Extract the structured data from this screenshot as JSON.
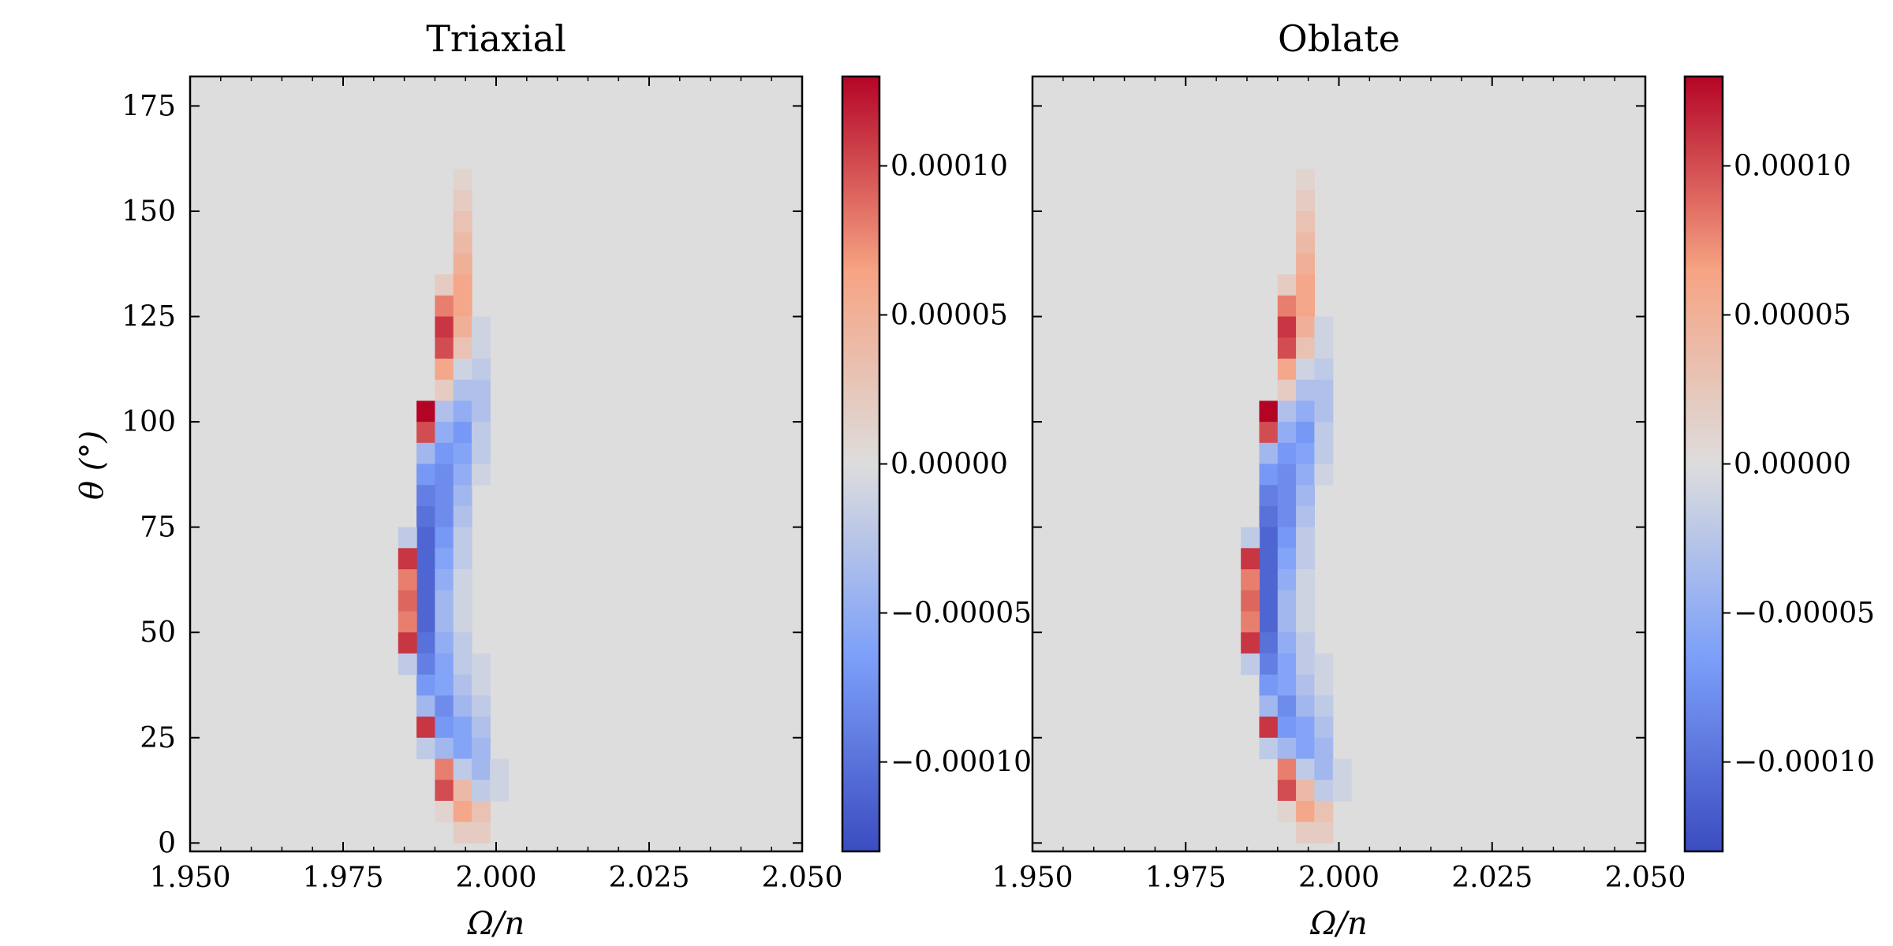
{
  "chart_data": [
    {
      "type": "heatmap",
      "title": "Triaxial",
      "xlabel": "Ω/n",
      "ylabel": "θ (°)",
      "xlim": [
        1.95,
        2.05
      ],
      "ylim": [
        0,
        180
      ],
      "xticks": [
        "1.950",
        "1.975",
        "2.000",
        "2.025",
        "2.050"
      ],
      "yticks": [
        "0",
        "25",
        "50",
        "75",
        "100",
        "125",
        "150",
        "175"
      ],
      "colormap": "coolwarm",
      "colorbar": {
        "vmin": -0.00013,
        "vmax": 0.00013,
        "ticks": [
          -0.0001,
          -5e-05,
          0,
          5e-05,
          0.0001
        ],
        "tick_labels": [
          "−0.00010",
          "−0.00005",
          "0.00000",
          "0.00005",
          "0.00010"
        ]
      },
      "cells": [
        {
          "x": 1.9885,
          "y": 102.5,
          "v": 0.00013
        },
        {
          "x": 1.9885,
          "y": 97.5,
          "v": 0.0001
        },
        {
          "x": 1.9885,
          "y": 92.5,
          "v": -4e-05
        },
        {
          "x": 1.9885,
          "y": 87.5,
          "v": -7e-05
        },
        {
          "x": 1.9885,
          "y": 82.5,
          "v": -9e-05
        },
        {
          "x": 1.9885,
          "y": 77.5,
          "v": -0.0001
        },
        {
          "x": 1.9885,
          "y": 72.5,
          "v": -0.00011
        },
        {
          "x": 1.9885,
          "y": 67.5,
          "v": -0.00011
        },
        {
          "x": 1.9885,
          "y": 62.5,
          "v": -0.00011
        },
        {
          "x": 1.9885,
          "y": 57.5,
          "v": -0.00011
        },
        {
          "x": 1.9885,
          "y": 52.5,
          "v": -0.00011
        },
        {
          "x": 1.9885,
          "y": 47.5,
          "v": -0.0001
        },
        {
          "x": 1.9885,
          "y": 42.5,
          "v": -9e-05
        },
        {
          "x": 1.9885,
          "y": 37.5,
          "v": -7e-05
        },
        {
          "x": 1.9885,
          "y": 32.5,
          "v": -4e-05
        },
        {
          "x": 1.9885,
          "y": 27.5,
          "v": 0.00011
        },
        {
          "x": 1.9885,
          "y": 22.5,
          "v": -2e-05
        },
        {
          "x": 1.9855,
          "y": 72.5,
          "v": -2e-05
        },
        {
          "x": 1.9855,
          "y": 67.5,
          "v": 0.00011
        },
        {
          "x": 1.9855,
          "y": 62.5,
          "v": 8e-05
        },
        {
          "x": 1.9855,
          "y": 57.5,
          "v": 9e-05
        },
        {
          "x": 1.9855,
          "y": 52.5,
          "v": 8e-05
        },
        {
          "x": 1.9855,
          "y": 47.5,
          "v": 0.00011
        },
        {
          "x": 1.9855,
          "y": 42.5,
          "v": -2e-05
        },
        {
          "x": 1.9915,
          "y": 132.5,
          "v": 2e-05
        },
        {
          "x": 1.9915,
          "y": 127.5,
          "v": 8e-05
        },
        {
          "x": 1.9915,
          "y": 122.5,
          "v": 0.00011
        },
        {
          "x": 1.9915,
          "y": 117.5,
          "v": 0.0001
        },
        {
          "x": 1.9915,
          "y": 112.5,
          "v": 6e-05
        },
        {
          "x": 1.9915,
          "y": 107.5,
          "v": 2e-05
        },
        {
          "x": 1.9915,
          "y": 102.5,
          "v": -3e-05
        },
        {
          "x": 1.9915,
          "y": 97.5,
          "v": -5e-05
        },
        {
          "x": 1.9915,
          "y": 92.5,
          "v": -7e-05
        },
        {
          "x": 1.9915,
          "y": 87.5,
          "v": -8e-05
        },
        {
          "x": 1.9915,
          "y": 82.5,
          "v": -8e-05
        },
        {
          "x": 1.9915,
          "y": 77.5,
          "v": -8e-05
        },
        {
          "x": 1.9915,
          "y": 72.5,
          "v": -7e-05
        },
        {
          "x": 1.9915,
          "y": 67.5,
          "v": -6e-05
        },
        {
          "x": 1.9915,
          "y": 62.5,
          "v": -5e-05
        },
        {
          "x": 1.9915,
          "y": 57.5,
          "v": -4e-05
        },
        {
          "x": 1.9915,
          "y": 52.5,
          "v": -4e-05
        },
        {
          "x": 1.9915,
          "y": 47.5,
          "v": -5e-05
        },
        {
          "x": 1.9915,
          "y": 42.5,
          "v": -6e-05
        },
        {
          "x": 1.9915,
          "y": 37.5,
          "v": -6e-05
        },
        {
          "x": 1.9915,
          "y": 32.5,
          "v": -8e-05
        },
        {
          "x": 1.9915,
          "y": 27.5,
          "v": -7e-05
        },
        {
          "x": 1.9915,
          "y": 22.5,
          "v": -4e-05
        },
        {
          "x": 1.9915,
          "y": 17.5,
          "v": 8e-05
        },
        {
          "x": 1.9915,
          "y": 12.5,
          "v": 0.0001
        },
        {
          "x": 1.9915,
          "y": 7.5,
          "v": 1e-05
        },
        {
          "x": 1.9945,
          "y": 157.5,
          "v": 1e-05
        },
        {
          "x": 1.9945,
          "y": 152.5,
          "v": 2e-05
        },
        {
          "x": 1.9945,
          "y": 147.5,
          "v": 3e-05
        },
        {
          "x": 1.9945,
          "y": 142.5,
          "v": 4e-05
        },
        {
          "x": 1.9945,
          "y": 137.5,
          "v": 5e-05
        },
        {
          "x": 1.9945,
          "y": 132.5,
          "v": 6e-05
        },
        {
          "x": 1.9945,
          "y": 127.5,
          "v": 6e-05
        },
        {
          "x": 1.9945,
          "y": 122.5,
          "v": 5e-05
        },
        {
          "x": 1.9945,
          "y": 117.5,
          "v": 3e-05
        },
        {
          "x": 1.9945,
          "y": 112.5,
          "v": -1e-05
        },
        {
          "x": 1.9945,
          "y": 107.5,
          "v": -3e-05
        },
        {
          "x": 1.9945,
          "y": 102.5,
          "v": -5e-05
        },
        {
          "x": 1.9945,
          "y": 97.5,
          "v": -7e-05
        },
        {
          "x": 1.9945,
          "y": 92.5,
          "v": -6e-05
        },
        {
          "x": 1.9945,
          "y": 87.5,
          "v": -5e-05
        },
        {
          "x": 1.9945,
          "y": 82.5,
          "v": -4e-05
        },
        {
          "x": 1.9945,
          "y": 77.5,
          "v": -3e-05
        },
        {
          "x": 1.9945,
          "y": 72.5,
          "v": -2e-05
        },
        {
          "x": 1.9945,
          "y": 67.5,
          "v": -2e-05
        },
        {
          "x": 1.9945,
          "y": 62.5,
          "v": -1e-05
        },
        {
          "x": 1.9945,
          "y": 57.5,
          "v": -1e-05
        },
        {
          "x": 1.9945,
          "y": 52.5,
          "v": -1e-05
        },
        {
          "x": 1.9945,
          "y": 47.5,
          "v": -2e-05
        },
        {
          "x": 1.9945,
          "y": 42.5,
          "v": -2e-05
        },
        {
          "x": 1.9945,
          "y": 37.5,
          "v": -3e-05
        },
        {
          "x": 1.9945,
          "y": 32.5,
          "v": -4e-05
        },
        {
          "x": 1.9945,
          "y": 27.5,
          "v": -6e-05
        },
        {
          "x": 1.9945,
          "y": 22.5,
          "v": -6e-05
        },
        {
          "x": 1.9945,
          "y": 17.5,
          "v": -2e-05
        },
        {
          "x": 1.9945,
          "y": 12.5,
          "v": 4e-05
        },
        {
          "x": 1.9945,
          "y": 7.5,
          "v": 6e-05
        },
        {
          "x": 1.9945,
          "y": 2.5,
          "v": 2e-05
        },
        {
          "x": 1.9975,
          "y": 122.5,
          "v": -1e-05
        },
        {
          "x": 1.9975,
          "y": 117.5,
          "v": -1e-05
        },
        {
          "x": 1.9975,
          "y": 112.5,
          "v": -2e-05
        },
        {
          "x": 1.9975,
          "y": 107.5,
          "v": -3e-05
        },
        {
          "x": 1.9975,
          "y": 102.5,
          "v": -3e-05
        },
        {
          "x": 1.9975,
          "y": 97.5,
          "v": -2e-05
        },
        {
          "x": 1.9975,
          "y": 92.5,
          "v": -2e-05
        },
        {
          "x": 1.9975,
          "y": 87.5,
          "v": -1e-05
        },
        {
          "x": 1.9975,
          "y": 42.5,
          "v": -1e-05
        },
        {
          "x": 1.9975,
          "y": 37.5,
          "v": -1e-05
        },
        {
          "x": 1.9975,
          "y": 32.5,
          "v": -2e-05
        },
        {
          "x": 1.9975,
          "y": 27.5,
          "v": -3e-05
        },
        {
          "x": 1.9975,
          "y": 22.5,
          "v": -4e-05
        },
        {
          "x": 1.9975,
          "y": 17.5,
          "v": -4e-05
        },
        {
          "x": 1.9975,
          "y": 12.5,
          "v": -2e-05
        },
        {
          "x": 1.9975,
          "y": 7.5,
          "v": 3e-05
        },
        {
          "x": 1.9975,
          "y": 2.5,
          "v": 2e-05
        },
        {
          "x": 2.0005,
          "y": 17.5,
          "v": -1e-05
        },
        {
          "x": 2.0005,
          "y": 12.5,
          "v": -1e-05
        }
      ]
    },
    {
      "type": "heatmap",
      "title": "Oblate",
      "xlabel": "Ω/n",
      "ylabel": "",
      "xlim": [
        1.95,
        2.05
      ],
      "ylim": [
        0,
        180
      ],
      "xticks": [
        "1.950",
        "1.975",
        "2.000",
        "2.025",
        "2.050"
      ],
      "yticks": [],
      "colormap": "coolwarm",
      "colorbar": {
        "vmin": -0.00013,
        "vmax": 0.00013,
        "ticks": [
          -0.0001,
          -5e-05,
          0,
          5e-05,
          0.0001
        ],
        "tick_labels": [
          "−0.00010",
          "−0.00005",
          "0.00000",
          "0.00005",
          "0.00010"
        ]
      },
      "cells": [
        {
          "x": 1.9885,
          "y": 102.5,
          "v": 0.00013
        },
        {
          "x": 1.9885,
          "y": 97.5,
          "v": 0.0001
        },
        {
          "x": 1.9885,
          "y": 92.5,
          "v": -4e-05
        },
        {
          "x": 1.9885,
          "y": 87.5,
          "v": -7e-05
        },
        {
          "x": 1.9885,
          "y": 82.5,
          "v": -9e-05
        },
        {
          "x": 1.9885,
          "y": 77.5,
          "v": -0.0001
        },
        {
          "x": 1.9885,
          "y": 72.5,
          "v": -0.00011
        },
        {
          "x": 1.9885,
          "y": 67.5,
          "v": -0.00011
        },
        {
          "x": 1.9885,
          "y": 62.5,
          "v": -0.00011
        },
        {
          "x": 1.9885,
          "y": 57.5,
          "v": -0.00011
        },
        {
          "x": 1.9885,
          "y": 52.5,
          "v": -0.00011
        },
        {
          "x": 1.9885,
          "y": 47.5,
          "v": -0.0001
        },
        {
          "x": 1.9885,
          "y": 42.5,
          "v": -9e-05
        },
        {
          "x": 1.9885,
          "y": 37.5,
          "v": -7e-05
        },
        {
          "x": 1.9885,
          "y": 32.5,
          "v": -4e-05
        },
        {
          "x": 1.9885,
          "y": 27.5,
          "v": 0.00011
        },
        {
          "x": 1.9885,
          "y": 22.5,
          "v": -2e-05
        },
        {
          "x": 1.9855,
          "y": 72.5,
          "v": -2e-05
        },
        {
          "x": 1.9855,
          "y": 67.5,
          "v": 0.00011
        },
        {
          "x": 1.9855,
          "y": 62.5,
          "v": 8e-05
        },
        {
          "x": 1.9855,
          "y": 57.5,
          "v": 9e-05
        },
        {
          "x": 1.9855,
          "y": 52.5,
          "v": 8e-05
        },
        {
          "x": 1.9855,
          "y": 47.5,
          "v": 0.00011
        },
        {
          "x": 1.9855,
          "y": 42.5,
          "v": -2e-05
        },
        {
          "x": 1.9915,
          "y": 132.5,
          "v": 2e-05
        },
        {
          "x": 1.9915,
          "y": 127.5,
          "v": 8e-05
        },
        {
          "x": 1.9915,
          "y": 122.5,
          "v": 0.00011
        },
        {
          "x": 1.9915,
          "y": 117.5,
          "v": 0.0001
        },
        {
          "x": 1.9915,
          "y": 112.5,
          "v": 6e-05
        },
        {
          "x": 1.9915,
          "y": 107.5,
          "v": 2e-05
        },
        {
          "x": 1.9915,
          "y": 102.5,
          "v": -3e-05
        },
        {
          "x": 1.9915,
          "y": 97.5,
          "v": -5e-05
        },
        {
          "x": 1.9915,
          "y": 92.5,
          "v": -7e-05
        },
        {
          "x": 1.9915,
          "y": 87.5,
          "v": -8e-05
        },
        {
          "x": 1.9915,
          "y": 82.5,
          "v": -8e-05
        },
        {
          "x": 1.9915,
          "y": 77.5,
          "v": -8e-05
        },
        {
          "x": 1.9915,
          "y": 72.5,
          "v": -7e-05
        },
        {
          "x": 1.9915,
          "y": 67.5,
          "v": -6e-05
        },
        {
          "x": 1.9915,
          "y": 62.5,
          "v": -5e-05
        },
        {
          "x": 1.9915,
          "y": 57.5,
          "v": -4e-05
        },
        {
          "x": 1.9915,
          "y": 52.5,
          "v": -4e-05
        },
        {
          "x": 1.9915,
          "y": 47.5,
          "v": -5e-05
        },
        {
          "x": 1.9915,
          "y": 42.5,
          "v": -6e-05
        },
        {
          "x": 1.9915,
          "y": 37.5,
          "v": -6e-05
        },
        {
          "x": 1.9915,
          "y": 32.5,
          "v": -8e-05
        },
        {
          "x": 1.9915,
          "y": 27.5,
          "v": -7e-05
        },
        {
          "x": 1.9915,
          "y": 22.5,
          "v": -4e-05
        },
        {
          "x": 1.9915,
          "y": 17.5,
          "v": 8e-05
        },
        {
          "x": 1.9915,
          "y": 12.5,
          "v": 0.0001
        },
        {
          "x": 1.9915,
          "y": 7.5,
          "v": 1e-05
        },
        {
          "x": 1.9945,
          "y": 157.5,
          "v": 1e-05
        },
        {
          "x": 1.9945,
          "y": 152.5,
          "v": 2e-05
        },
        {
          "x": 1.9945,
          "y": 147.5,
          "v": 3e-05
        },
        {
          "x": 1.9945,
          "y": 142.5,
          "v": 4e-05
        },
        {
          "x": 1.9945,
          "y": 137.5,
          "v": 5e-05
        },
        {
          "x": 1.9945,
          "y": 132.5,
          "v": 6e-05
        },
        {
          "x": 1.9945,
          "y": 127.5,
          "v": 6e-05
        },
        {
          "x": 1.9945,
          "y": 122.5,
          "v": 5e-05
        },
        {
          "x": 1.9945,
          "y": 117.5,
          "v": 3e-05
        },
        {
          "x": 1.9945,
          "y": 112.5,
          "v": -1e-05
        },
        {
          "x": 1.9945,
          "y": 107.5,
          "v": -3e-05
        },
        {
          "x": 1.9945,
          "y": 102.5,
          "v": -5e-05
        },
        {
          "x": 1.9945,
          "y": 97.5,
          "v": -7e-05
        },
        {
          "x": 1.9945,
          "y": 92.5,
          "v": -6e-05
        },
        {
          "x": 1.9945,
          "y": 87.5,
          "v": -5e-05
        },
        {
          "x": 1.9945,
          "y": 82.5,
          "v": -4e-05
        },
        {
          "x": 1.9945,
          "y": 77.5,
          "v": -3e-05
        },
        {
          "x": 1.9945,
          "y": 72.5,
          "v": -2e-05
        },
        {
          "x": 1.9945,
          "y": 67.5,
          "v": -2e-05
        },
        {
          "x": 1.9945,
          "y": 62.5,
          "v": -1e-05
        },
        {
          "x": 1.9945,
          "y": 57.5,
          "v": -1e-05
        },
        {
          "x": 1.9945,
          "y": 52.5,
          "v": -1e-05
        },
        {
          "x": 1.9945,
          "y": 47.5,
          "v": -2e-05
        },
        {
          "x": 1.9945,
          "y": 42.5,
          "v": -2e-05
        },
        {
          "x": 1.9945,
          "y": 37.5,
          "v": -3e-05
        },
        {
          "x": 1.9945,
          "y": 32.5,
          "v": -4e-05
        },
        {
          "x": 1.9945,
          "y": 27.5,
          "v": -6e-05
        },
        {
          "x": 1.9945,
          "y": 22.5,
          "v": -6e-05
        },
        {
          "x": 1.9945,
          "y": 17.5,
          "v": -2e-05
        },
        {
          "x": 1.9945,
          "y": 12.5,
          "v": 4e-05
        },
        {
          "x": 1.9945,
          "y": 7.5,
          "v": 6e-05
        },
        {
          "x": 1.9945,
          "y": 2.5,
          "v": 2e-05
        },
        {
          "x": 1.9975,
          "y": 122.5,
          "v": -1e-05
        },
        {
          "x": 1.9975,
          "y": 117.5,
          "v": -1e-05
        },
        {
          "x": 1.9975,
          "y": 112.5,
          "v": -2e-05
        },
        {
          "x": 1.9975,
          "y": 107.5,
          "v": -3e-05
        },
        {
          "x": 1.9975,
          "y": 102.5,
          "v": -3e-05
        },
        {
          "x": 1.9975,
          "y": 97.5,
          "v": -2e-05
        },
        {
          "x": 1.9975,
          "y": 92.5,
          "v": -2e-05
        },
        {
          "x": 1.9975,
          "y": 87.5,
          "v": -1e-05
        },
        {
          "x": 1.9975,
          "y": 42.5,
          "v": -1e-05
        },
        {
          "x": 1.9975,
          "y": 37.5,
          "v": -1e-05
        },
        {
          "x": 1.9975,
          "y": 32.5,
          "v": -2e-05
        },
        {
          "x": 1.9975,
          "y": 27.5,
          "v": -3e-05
        },
        {
          "x": 1.9975,
          "y": 22.5,
          "v": -4e-05
        },
        {
          "x": 1.9975,
          "y": 17.5,
          "v": -4e-05
        },
        {
          "x": 1.9975,
          "y": 12.5,
          "v": -2e-05
        },
        {
          "x": 1.9975,
          "y": 7.5,
          "v": 3e-05
        },
        {
          "x": 1.9975,
          "y": 2.5,
          "v": 2e-05
        },
        {
          "x": 2.0005,
          "y": 17.5,
          "v": -1e-05
        },
        {
          "x": 2.0005,
          "y": 12.5,
          "v": -1e-05
        }
      ]
    }
  ]
}
